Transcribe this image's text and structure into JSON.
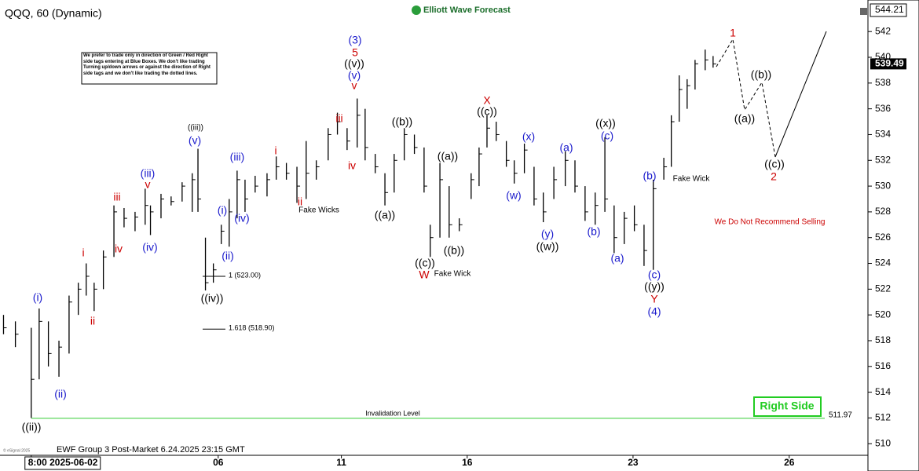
{
  "chart_data": {
    "type": "ohlc",
    "title": "QQQ, 60 (Dynamic)",
    "brand": "Elliott Wave Forecast",
    "footer": "EWF Group 3 Post-Market 6.24.2025 23:15 GMT",
    "copyright": "© eSignal 2025",
    "badge": "Right Side",
    "note": "We prefer to trade only in direction of Green / Red Right side tags entering at Blue Boxes. We don't like trading Turning up/down arrows or against the direction of Right side tags and we don't like trading the dotted lines.",
    "top_price": 544.21,
    "xlim": [
      -0.71,
      19.02
    ],
    "ylim": [
      509.1,
      544.45
    ],
    "xticks": [
      {
        "value": 0,
        "label": "8:00 2025-06-02"
      },
      {
        "value": 4.25,
        "label": "06"
      },
      {
        "value": 7.05,
        "label": "11"
      },
      {
        "value": 9.91,
        "label": "16"
      },
      {
        "value": 13.68,
        "label": "23"
      },
      {
        "value": 17.23,
        "label": "26"
      }
    ],
    "yticks": [
      510,
      512,
      514,
      516,
      518,
      520,
      522,
      524,
      526,
      528,
      530,
      532,
      534,
      536,
      538,
      540,
      542
    ],
    "color": "#000000",
    "x": [
      -0.63,
      -0.36,
      0,
      0.18,
      0.39,
      0.63,
      0.86,
      1.07,
      1.25,
      1.43,
      1.64,
      1.88,
      2.11,
      2.36,
      2.59,
      2.71,
      2.95,
      3.18,
      3.43,
      3.66,
      3.79,
      3.96,
      4.14,
      4.32,
      4.5,
      4.68,
      4.86,
      5.09,
      5.36,
      5.57,
      5.8,
      6.04,
      6.25,
      6.48,
      6.75,
      6.96,
      7.18,
      7.41,
      7.59,
      7.82,
      8.04,
      8.25,
      8.48,
      8.71,
      8.93,
      9.07,
      9.29,
      9.5,
      9.73,
      10,
      10.18,
      10.36,
      10.57,
      10.8,
      10.98,
      11.21,
      11.43,
      11.64,
      11.88,
      12.14,
      12.36,
      12.59,
      12.82,
      13.04,
      13.25,
      13.48,
      13.71,
      13.93,
      14.14,
      14.38,
      14.55,
      14.73,
      14.91,
      15.09,
      15.32,
      15.5
    ],
    "low": [
      518.5,
      517.5,
      512,
      515,
      516,
      515.2,
      517,
      520,
      521.5,
      520.3,
      522,
      524.5,
      526.8,
      526.5,
      527,
      526.2,
      527.5,
      528.5,
      528.8,
      528,
      528,
      521.9,
      522.5,
      525.5,
      525.3,
      527.5,
      528,
      529.5,
      529.2,
      530.5,
      530.5,
      528.7,
      529,
      530.5,
      532,
      534,
      532.8,
      533,
      532,
      531,
      528.5,
      529.5,
      532,
      532.5,
      529.5,
      524.5,
      526,
      526,
      526.5,
      529,
      530,
      533,
      533.5,
      531.5,
      530.2,
      531,
      528.5,
      527.2,
      529,
      530,
      529.5,
      527.3,
      527,
      528,
      524.8,
      525.5,
      526.5,
      523.8,
      523.5,
      530.5,
      531.5,
      535,
      536,
      537.5,
      539,
      539.2
    ],
    "high": [
      520,
      519.5,
      519,
      520.5,
      519.5,
      518,
      521.5,
      522.5,
      524,
      522.5,
      525,
      528.5,
      528.3,
      528,
      529.8,
      528.5,
      529.4,
      529.2,
      530.3,
      531,
      532.9,
      526,
      524,
      527,
      529,
      531.2,
      530.5,
      530.8,
      531,
      532.3,
      531.8,
      531.5,
      533.5,
      532,
      534.5,
      535.7,
      534.5,
      536.8,
      536,
      532.5,
      531,
      532.5,
      534.5,
      534,
      533,
      527,
      531.8,
      530,
      527.5,
      531,
      533,
      535.5,
      535,
      533.5,
      532,
      533.3,
      531.5,
      529.5,
      531.5,
      532.7,
      532,
      530,
      529.5,
      533.8,
      528.5,
      528,
      528.5,
      527,
      530.5,
      532.2,
      535.5,
      538.6,
      538.3,
      539.8,
      540.6,
      540.1
    ],
    "close": [
      519,
      518.5,
      515,
      519.5,
      517,
      517.5,
      521,
      522,
      523,
      522,
      524.5,
      528,
      527.5,
      527.6,
      528.5,
      528,
      529,
      528.8,
      530,
      530.5,
      529,
      522.5,
      523.5,
      526.5,
      528,
      530.5,
      529,
      530,
      530.5,
      531.5,
      531,
      530,
      531,
      531.5,
      534,
      535,
      533.5,
      535.5,
      533,
      531.5,
      529.5,
      532,
      534,
      533,
      530,
      526,
      530.5,
      527,
      527,
      530.5,
      532.5,
      534.5,
      534,
      532,
      531,
      532.8,
      529,
      528,
      530.5,
      532,
      530,
      528,
      528.5,
      529,
      526,
      527.5,
      527,
      525,
      529.8,
      531.5,
      535,
      537.5,
      537.8,
      539.5,
      539.8,
      539.49
    ],
    "levels": [
      {
        "value": 523,
        "label": "1 (523.00)"
      },
      {
        "value": 518.9,
        "label": "1.618 (518.90)"
      }
    ],
    "invalidation": {
      "text": "Invalidation Level",
      "value": 511.97,
      "color": "#33cc33"
    },
    "annotations": [
      {
        "text": "((ii))",
        "color": "#000000"
      },
      {
        "text": "(i)",
        "color": "#1a1acc"
      },
      {
        "text": "(ii)",
        "color": "#1a1acc"
      },
      {
        "text": "i",
        "color": "#cc0000"
      },
      {
        "text": "ii",
        "color": "#cc0000"
      },
      {
        "text": "iii",
        "color": "#cc0000"
      },
      {
        "text": "iv",
        "color": "#cc0000"
      },
      {
        "text": "(iii)",
        "color": "#1a1acc"
      },
      {
        "text": "v",
        "color": "#cc0000"
      },
      {
        "text": "(iv)",
        "color": "#1a1acc"
      },
      {
        "text": "((iii))",
        "color": "#000000"
      },
      {
        "text": "(v)",
        "color": "#1a1acc"
      },
      {
        "text": "(i)",
        "color": "#1a1acc"
      },
      {
        "text": "(ii)",
        "color": "#1a1acc"
      },
      {
        "text": "((iv))",
        "color": "#000000"
      },
      {
        "text": "(iii)",
        "color": "#1a1acc"
      },
      {
        "text": "(iv)",
        "color": "#1a1acc"
      },
      {
        "text": "i",
        "color": "#cc0000"
      },
      {
        "text": "ii",
        "color": "#cc0000"
      },
      {
        "text": "Fake Wicks",
        "color": "#000000"
      },
      {
        "text": "iii",
        "color": "#cc0000"
      },
      {
        "text": "iv",
        "color": "#cc0000"
      },
      {
        "text": "(3)",
        "color": "#1a1acc"
      },
      {
        "text": "5",
        "color": "#cc0000"
      },
      {
        "text": "((v))",
        "color": "#000000"
      },
      {
        "text": "(v)",
        "color": "#1a1acc"
      },
      {
        "text": "v",
        "color": "#cc0000"
      },
      {
        "text": "((b))",
        "color": "#000000"
      },
      {
        "text": "((a))",
        "color": "#000000"
      },
      {
        "text": "((a))",
        "color": "#000000"
      },
      {
        "text": "((c))",
        "color": "#000000"
      },
      {
        "text": "W",
        "color": "#cc0000"
      },
      {
        "text": "((b))",
        "color": "#000000"
      },
      {
        "text": "Fake Wick",
        "color": "#000000"
      },
      {
        "text": "X",
        "color": "#cc0000"
      },
      {
        "text": "((c))",
        "color": "#000000"
      },
      {
        "text": "(x)",
        "color": "#1a1acc"
      },
      {
        "text": "(w)",
        "color": "#1a1acc"
      },
      {
        "text": "(y)",
        "color": "#1a1acc"
      },
      {
        "text": "((w))",
        "color": "#000000"
      },
      {
        "text": "(a)",
        "color": "#1a1acc"
      },
      {
        "text": "((x))",
        "color": "#000000"
      },
      {
        "text": "(c)",
        "color": "#1a1acc"
      },
      {
        "text": "(b)",
        "color": "#1a1acc"
      },
      {
        "text": "(a)",
        "color": "#1a1acc"
      },
      {
        "text": "(b)",
        "color": "#1a1acc"
      },
      {
        "text": "(c)",
        "color": "#1a1acc"
      },
      {
        "text": "((y))",
        "color": "#000000"
      },
      {
        "text": "Y",
        "color": "#cc0000"
      },
      {
        "text": "(4)",
        "color": "#1a1acc"
      },
      {
        "text": "Fake Wick",
        "color": "#000000"
      },
      {
        "text": "1",
        "color": "#cc0000"
      },
      {
        "text": "((a))",
        "color": "#000000"
      },
      {
        "text": "((b))",
        "color": "#000000"
      },
      {
        "text": "((c))",
        "color": "#000000"
      },
      {
        "text": "2",
        "color": "#cc0000"
      },
      {
        "text": "We Do Not Recommend Selling",
        "color": "#cc0000"
      }
    ]
  }
}
